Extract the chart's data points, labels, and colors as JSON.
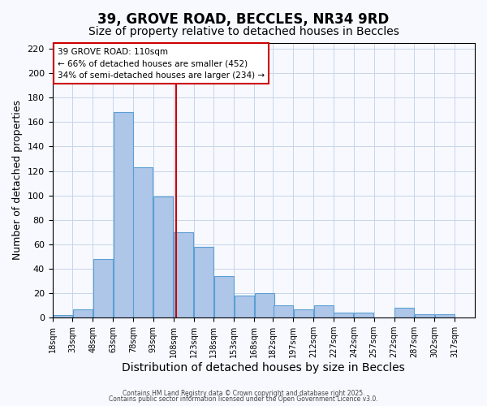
{
  "title": "39, GROVE ROAD, BECCLES, NR34 9RD",
  "subtitle": "Size of property relative to detached houses in Beccles",
  "xlabel": "Distribution of detached houses by size in Beccles",
  "ylabel": "Number of detached properties",
  "bar_left_edges": [
    18,
    33,
    48,
    63,
    78,
    93,
    108,
    123,
    138,
    153,
    168,
    182,
    197,
    212,
    227,
    242,
    257,
    272,
    287,
    302
  ],
  "bar_heights": [
    2,
    7,
    48,
    168,
    123,
    99,
    70,
    58,
    34,
    18,
    20,
    10,
    7,
    10,
    4,
    4,
    0,
    8,
    3,
    3
  ],
  "bin_width": 15,
  "tick_labels": [
    "18sqm",
    "33sqm",
    "48sqm",
    "63sqm",
    "78sqm",
    "93sqm",
    "108sqm",
    "123sqm",
    "138sqm",
    "153sqm",
    "168sqm",
    "182sqm",
    "197sqm",
    "212sqm",
    "227sqm",
    "242sqm",
    "257sqm",
    "272sqm",
    "287sqm",
    "302sqm",
    "317sqm"
  ],
  "tick_positions": [
    18,
    33,
    48,
    63,
    78,
    93,
    108,
    123,
    138,
    153,
    168,
    182,
    197,
    212,
    227,
    242,
    257,
    272,
    287,
    302,
    317
  ],
  "bar_color": "#aec6e8",
  "bar_edge_color": "#5a9fd4",
  "vline_x": 110,
  "vline_color": "#cc0000",
  "ylim": [
    0,
    225
  ],
  "yticks": [
    0,
    20,
    40,
    60,
    80,
    100,
    120,
    140,
    160,
    180,
    200,
    220
  ],
  "annotation_title": "39 GROVE ROAD: 110sqm",
  "annotation_line1": "← 66% of detached houses are smaller (452)",
  "annotation_line2": "34% of semi-detached houses are larger (234) →",
  "bg_color": "#f7f9ff",
  "footer1": "Contains HM Land Registry data © Crown copyright and database right 2025.",
  "footer2": "Contains public sector information licensed under the Open Government Licence v3.0.",
  "title_fontsize": 12,
  "subtitle_fontsize": 10,
  "ylabel_fontsize": 9,
  "xlabel_fontsize": 10
}
